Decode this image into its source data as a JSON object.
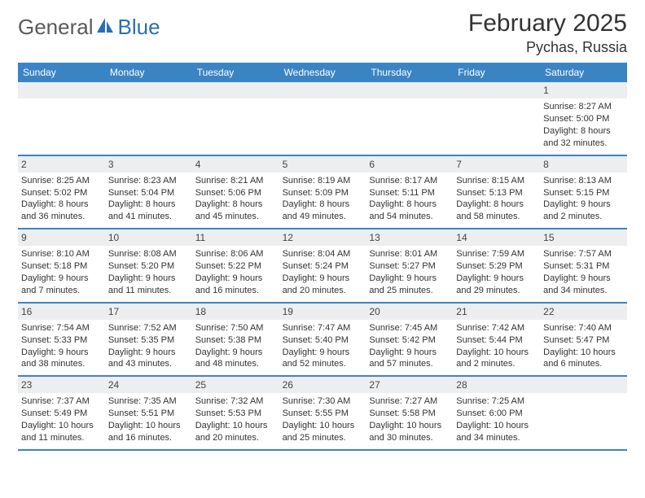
{
  "brand": {
    "word1": "General",
    "word2": "Blue"
  },
  "title": "February 2025",
  "location": "Pychas, Russia",
  "colors": {
    "header_bg": "#3b84c4",
    "row_separator": "#3b84c4",
    "daynum_bg": "#eceeef",
    "brand_gray": "#5a5a5a",
    "brand_blue": "#2a6fb5",
    "text": "#333333"
  },
  "weekdays": [
    "Sunday",
    "Monday",
    "Tuesday",
    "Wednesday",
    "Thursday",
    "Friday",
    "Saturday"
  ],
  "weeks": [
    [
      {
        "n": "",
        "sunrise": "",
        "sunset": "",
        "daylight": ""
      },
      {
        "n": "",
        "sunrise": "",
        "sunset": "",
        "daylight": ""
      },
      {
        "n": "",
        "sunrise": "",
        "sunset": "",
        "daylight": ""
      },
      {
        "n": "",
        "sunrise": "",
        "sunset": "",
        "daylight": ""
      },
      {
        "n": "",
        "sunrise": "",
        "sunset": "",
        "daylight": ""
      },
      {
        "n": "",
        "sunrise": "",
        "sunset": "",
        "daylight": ""
      },
      {
        "n": "1",
        "sunrise": "Sunrise: 8:27 AM",
        "sunset": "Sunset: 5:00 PM",
        "daylight": "Daylight: 8 hours and 32 minutes."
      }
    ],
    [
      {
        "n": "2",
        "sunrise": "Sunrise: 8:25 AM",
        "sunset": "Sunset: 5:02 PM",
        "daylight": "Daylight: 8 hours and 36 minutes."
      },
      {
        "n": "3",
        "sunrise": "Sunrise: 8:23 AM",
        "sunset": "Sunset: 5:04 PM",
        "daylight": "Daylight: 8 hours and 41 minutes."
      },
      {
        "n": "4",
        "sunrise": "Sunrise: 8:21 AM",
        "sunset": "Sunset: 5:06 PM",
        "daylight": "Daylight: 8 hours and 45 minutes."
      },
      {
        "n": "5",
        "sunrise": "Sunrise: 8:19 AM",
        "sunset": "Sunset: 5:09 PM",
        "daylight": "Daylight: 8 hours and 49 minutes."
      },
      {
        "n": "6",
        "sunrise": "Sunrise: 8:17 AM",
        "sunset": "Sunset: 5:11 PM",
        "daylight": "Daylight: 8 hours and 54 minutes."
      },
      {
        "n": "7",
        "sunrise": "Sunrise: 8:15 AM",
        "sunset": "Sunset: 5:13 PM",
        "daylight": "Daylight: 8 hours and 58 minutes."
      },
      {
        "n": "8",
        "sunrise": "Sunrise: 8:13 AM",
        "sunset": "Sunset: 5:15 PM",
        "daylight": "Daylight: 9 hours and 2 minutes."
      }
    ],
    [
      {
        "n": "9",
        "sunrise": "Sunrise: 8:10 AM",
        "sunset": "Sunset: 5:18 PM",
        "daylight": "Daylight: 9 hours and 7 minutes."
      },
      {
        "n": "10",
        "sunrise": "Sunrise: 8:08 AM",
        "sunset": "Sunset: 5:20 PM",
        "daylight": "Daylight: 9 hours and 11 minutes."
      },
      {
        "n": "11",
        "sunrise": "Sunrise: 8:06 AM",
        "sunset": "Sunset: 5:22 PM",
        "daylight": "Daylight: 9 hours and 16 minutes."
      },
      {
        "n": "12",
        "sunrise": "Sunrise: 8:04 AM",
        "sunset": "Sunset: 5:24 PM",
        "daylight": "Daylight: 9 hours and 20 minutes."
      },
      {
        "n": "13",
        "sunrise": "Sunrise: 8:01 AM",
        "sunset": "Sunset: 5:27 PM",
        "daylight": "Daylight: 9 hours and 25 minutes."
      },
      {
        "n": "14",
        "sunrise": "Sunrise: 7:59 AM",
        "sunset": "Sunset: 5:29 PM",
        "daylight": "Daylight: 9 hours and 29 minutes."
      },
      {
        "n": "15",
        "sunrise": "Sunrise: 7:57 AM",
        "sunset": "Sunset: 5:31 PM",
        "daylight": "Daylight: 9 hours and 34 minutes."
      }
    ],
    [
      {
        "n": "16",
        "sunrise": "Sunrise: 7:54 AM",
        "sunset": "Sunset: 5:33 PM",
        "daylight": "Daylight: 9 hours and 38 minutes."
      },
      {
        "n": "17",
        "sunrise": "Sunrise: 7:52 AM",
        "sunset": "Sunset: 5:35 PM",
        "daylight": "Daylight: 9 hours and 43 minutes."
      },
      {
        "n": "18",
        "sunrise": "Sunrise: 7:50 AM",
        "sunset": "Sunset: 5:38 PM",
        "daylight": "Daylight: 9 hours and 48 minutes."
      },
      {
        "n": "19",
        "sunrise": "Sunrise: 7:47 AM",
        "sunset": "Sunset: 5:40 PM",
        "daylight": "Daylight: 9 hours and 52 minutes."
      },
      {
        "n": "20",
        "sunrise": "Sunrise: 7:45 AM",
        "sunset": "Sunset: 5:42 PM",
        "daylight": "Daylight: 9 hours and 57 minutes."
      },
      {
        "n": "21",
        "sunrise": "Sunrise: 7:42 AM",
        "sunset": "Sunset: 5:44 PM",
        "daylight": "Daylight: 10 hours and 2 minutes."
      },
      {
        "n": "22",
        "sunrise": "Sunrise: 7:40 AM",
        "sunset": "Sunset: 5:47 PM",
        "daylight": "Daylight: 10 hours and 6 minutes."
      }
    ],
    [
      {
        "n": "23",
        "sunrise": "Sunrise: 7:37 AM",
        "sunset": "Sunset: 5:49 PM",
        "daylight": "Daylight: 10 hours and 11 minutes."
      },
      {
        "n": "24",
        "sunrise": "Sunrise: 7:35 AM",
        "sunset": "Sunset: 5:51 PM",
        "daylight": "Daylight: 10 hours and 16 minutes."
      },
      {
        "n": "25",
        "sunrise": "Sunrise: 7:32 AM",
        "sunset": "Sunset: 5:53 PM",
        "daylight": "Daylight: 10 hours and 20 minutes."
      },
      {
        "n": "26",
        "sunrise": "Sunrise: 7:30 AM",
        "sunset": "Sunset: 5:55 PM",
        "daylight": "Daylight: 10 hours and 25 minutes."
      },
      {
        "n": "27",
        "sunrise": "Sunrise: 7:27 AM",
        "sunset": "Sunset: 5:58 PM",
        "daylight": "Daylight: 10 hours and 30 minutes."
      },
      {
        "n": "28",
        "sunrise": "Sunrise: 7:25 AM",
        "sunset": "Sunset: 6:00 PM",
        "daylight": "Daylight: 10 hours and 34 minutes."
      },
      {
        "n": "",
        "sunrise": "",
        "sunset": "",
        "daylight": ""
      }
    ]
  ]
}
